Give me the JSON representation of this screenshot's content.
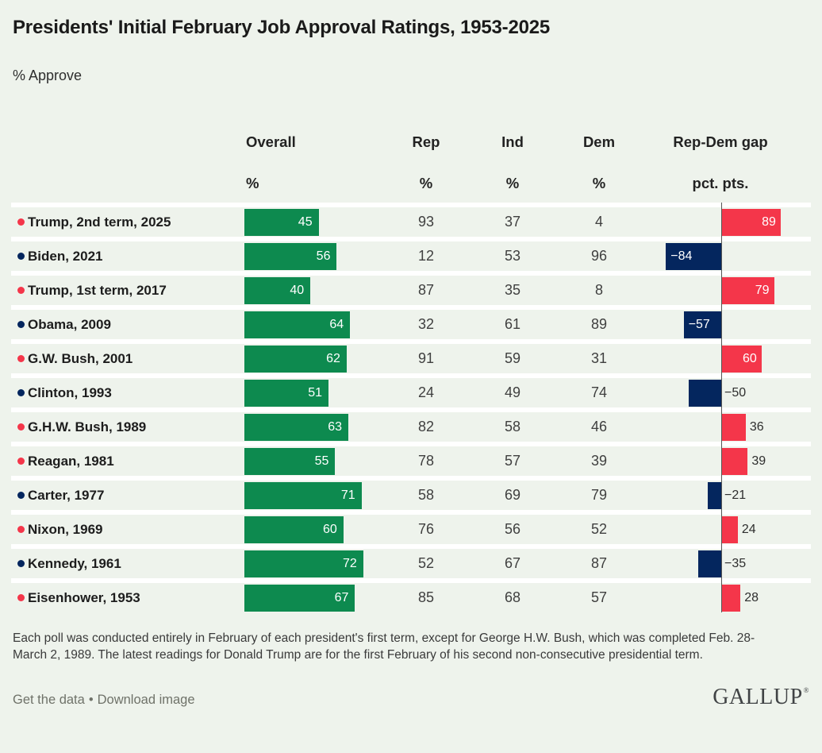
{
  "header": {
    "title": "Presidents' Initial February Job Approval Ratings, 1953-2025",
    "subtitle": "% Approve"
  },
  "columns": {
    "overall_label": "Overall",
    "overall_unit": "%",
    "rep_label": "Rep",
    "rep_unit": "%",
    "ind_label": "Ind",
    "ind_unit": "%",
    "dem_label": "Dem",
    "dem_unit": "%",
    "gap_label": "Rep-Dem gap",
    "gap_unit": "pct. pts."
  },
  "chart_data": {
    "type": "bar",
    "orientation": "horizontal",
    "value_axis_range_overall": [
      0,
      100
    ],
    "gap_axis": {
      "zero_line": true,
      "negative_means_dem_advantage": true
    },
    "colors": {
      "overall_bar": "#0d8a4f",
      "republican": "#f4364a",
      "democrat": "#04265e",
      "background": "#eef3ec",
      "row_separator": "#ffffff"
    },
    "series": [
      {
        "president": "Trump, 2nd term, 2025",
        "party": "R",
        "overall": 45,
        "rep": 93,
        "ind": 37,
        "dem": 4,
        "gap": 89,
        "gap_label_inside": true
      },
      {
        "president": "Biden, 2021",
        "party": "D",
        "overall": 56,
        "rep": 12,
        "ind": 53,
        "dem": 96,
        "gap": -84,
        "gap_label_inside": true
      },
      {
        "president": "Trump, 1st term, 2017",
        "party": "R",
        "overall": 40,
        "rep": 87,
        "ind": 35,
        "dem": 8,
        "gap": 79,
        "gap_label_inside": true
      },
      {
        "president": "Obama, 2009",
        "party": "D",
        "overall": 64,
        "rep": 32,
        "ind": 61,
        "dem": 89,
        "gap": -57,
        "gap_label_inside": true
      },
      {
        "president": "G.W. Bush, 2001",
        "party": "R",
        "overall": 62,
        "rep": 91,
        "ind": 59,
        "dem": 31,
        "gap": 60,
        "gap_label_inside": true
      },
      {
        "president": "Clinton, 1993",
        "party": "D",
        "overall": 51,
        "rep": 24,
        "ind": 49,
        "dem": 74,
        "gap": -50,
        "gap_label_inside": false
      },
      {
        "president": "G.H.W. Bush, 1989",
        "party": "R",
        "overall": 63,
        "rep": 82,
        "ind": 58,
        "dem": 46,
        "gap": 36,
        "gap_label_inside": false
      },
      {
        "president": "Reagan, 1981",
        "party": "R",
        "overall": 55,
        "rep": 78,
        "ind": 57,
        "dem": 39,
        "gap": 39,
        "gap_label_inside": false
      },
      {
        "president": "Carter, 1977",
        "party": "D",
        "overall": 71,
        "rep": 58,
        "ind": 69,
        "dem": 79,
        "gap": -21,
        "gap_label_inside": false
      },
      {
        "president": "Nixon, 1969",
        "party": "R",
        "overall": 60,
        "rep": 76,
        "ind": 56,
        "dem": 52,
        "gap": 24,
        "gap_label_inside": false
      },
      {
        "president": "Kennedy, 1961",
        "party": "D",
        "overall": 72,
        "rep": 52,
        "ind": 67,
        "dem": 87,
        "gap": -35,
        "gap_label_inside": false
      },
      {
        "president": "Eisenhower, 1953",
        "party": "R",
        "overall": 67,
        "rep": 85,
        "ind": 68,
        "dem": 57,
        "gap": 28,
        "gap_label_inside": false
      }
    ]
  },
  "footnote": "Each poll was conducted entirely in February of each president's first term, except for George H.W. Bush, which was completed Feb. 28-March 2, 1989. The latest readings for Donald Trump are for the first February of his second non-consecutive presidential term.",
  "footer": {
    "link_get_data": "Get the data",
    "separator": "•",
    "link_download": "Download image",
    "logo": "GALLUP",
    "trademark": "®"
  }
}
